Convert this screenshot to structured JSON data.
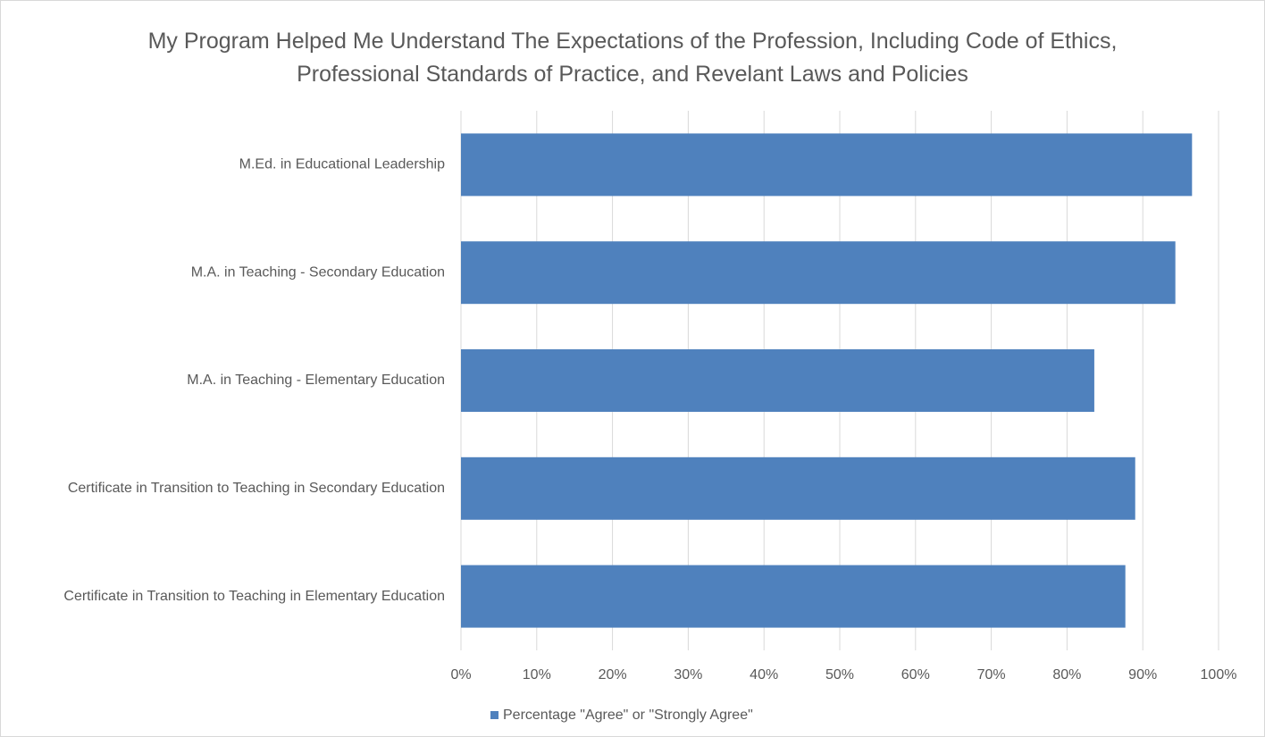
{
  "chart_data": {
    "type": "bar",
    "orientation": "horizontal",
    "title": "My Program Helped Me Understand The Expectations of the Profession, Including Code of Ethics, Professional Standards of Practice, and Revelant Laws and Policies",
    "categories": [
      "M.Ed. in Educational Leadership",
      "M.A. in Teaching - Secondary Education",
      "M.A. in Teaching - Elementary Education",
      "Certificate in Transition to Teaching in Secondary Education",
      "Certificate in Transition to Teaching in Elementary Education"
    ],
    "series": [
      {
        "name": "Percentage \"Agree\" or \"Strongly Agree\"",
        "color": "#4f81bd",
        "values": [
          96.5,
          94.3,
          83.6,
          89.0,
          87.7
        ]
      }
    ],
    "xlim": [
      0,
      100
    ],
    "xticks": [
      {
        "value": 0,
        "label": "0%"
      },
      {
        "value": 10,
        "label": "10%"
      },
      {
        "value": 20,
        "label": "20%"
      },
      {
        "value": 30,
        "label": "30%"
      },
      {
        "value": 40,
        "label": "40%"
      },
      {
        "value": 50,
        "label": "50%"
      },
      {
        "value": 60,
        "label": "60%"
      },
      {
        "value": 70,
        "label": "70%"
      },
      {
        "value": 80,
        "label": "80%"
      },
      {
        "value": 90,
        "label": "90%"
      },
      {
        "value": 100,
        "label": "100%"
      }
    ],
    "grid": true,
    "legend": "bottom"
  }
}
